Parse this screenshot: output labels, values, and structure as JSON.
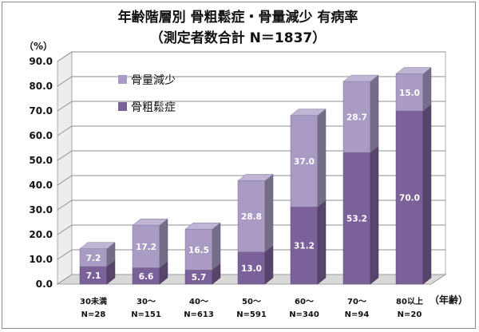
{
  "chart_data": {
    "type": "bar",
    "stacked": true,
    "style": "3d",
    "title": "年齢階層別 骨粗鬆症・骨量減少 有病率",
    "subtitle": "（測定者数合計 N＝1837）",
    "ylabel": "（%）",
    "xlabel": "（年齢）",
    "ylim": [
      0,
      90
    ],
    "yticks": [
      "0.0",
      "10.0",
      "20.0",
      "30.0",
      "40.0",
      "50.0",
      "60.0",
      "70.0",
      "80.0",
      "90.0"
    ],
    "grid": true,
    "legend_position": "top-left",
    "categories": [
      {
        "label": "30未満",
        "n": "N=28"
      },
      {
        "label": "30～",
        "n": "N=151"
      },
      {
        "label": "40～",
        "n": "N=613"
      },
      {
        "label": "50～",
        "n": "N=591"
      },
      {
        "label": "60～",
        "n": "N=340"
      },
      {
        "label": "70～",
        "n": "N=94"
      },
      {
        "label": "80以上",
        "n": "N=20"
      }
    ],
    "series": [
      {
        "name": "骨粗鬆症",
        "color": "#7b6199",
        "values": [
          7.1,
          6.6,
          5.7,
          13.0,
          31.2,
          53.2,
          70.0
        ],
        "labels": [
          "7.1",
          "6.6",
          "5.7",
          "13.0",
          "31.2",
          "53.2",
          "70.0"
        ]
      },
      {
        "name": "骨量減少",
        "color": "#a99bc4",
        "values": [
          7.2,
          17.2,
          16.5,
          28.8,
          37.0,
          28.7,
          15.0
        ],
        "labels": [
          "7.2",
          "17.2",
          "16.5",
          "28.8",
          "37.0",
          "28.7",
          "15.0"
        ]
      }
    ],
    "legend_order": [
      "骨量減少",
      "骨粗鬆症"
    ]
  }
}
